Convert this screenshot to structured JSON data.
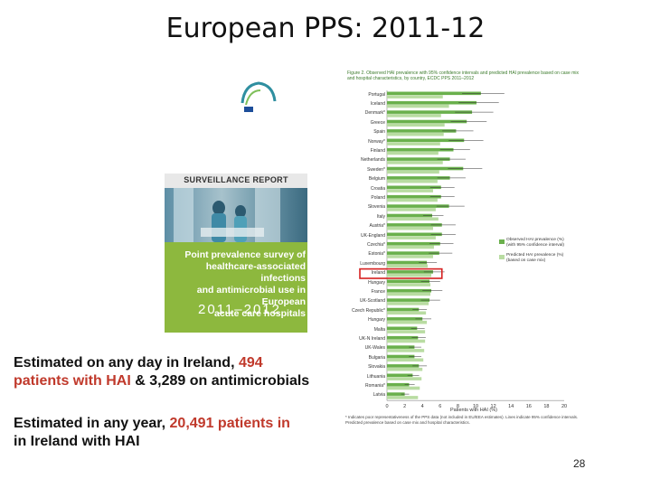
{
  "title": "European PPS: 2011-12",
  "cover": {
    "logo_text": "ecdc",
    "report_label": "SURVEILLANCE REPORT",
    "title_lines": [
      "Point prevalence survey of",
      "healthcare-associated infections",
      "and antimicrobial use in European",
      "acute care hospitals"
    ],
    "year": "2011–2012"
  },
  "figure": {
    "caption": "Figure 2. Observed HAI prevalence with 95% confidence intervals and predicted HAI prevalence based on case mix and hospital characteristics, by country, ECDC PPS 2011–2012",
    "countries": [
      "Portugal",
      "Iceland",
      "Denmark*",
      "Greece",
      "Spain",
      "Norway*",
      "Finland",
      "Netherlands",
      "Sweden*",
      "Belgium",
      "Croatia",
      "Poland",
      "Slovenia",
      "Italy",
      "Austria*",
      "UK-England",
      "Czechia*",
      "Estonia*",
      "Luxembourg",
      "Ireland",
      "Hungary",
      "France",
      "UK-Scotland",
      "Czech Republic*",
      "Hungary",
      "Malta",
      "UK-N Ireland",
      "UK-Wales",
      "Bulgaria",
      "Slovakia",
      "Lithuania",
      "Romania*",
      "Latvia"
    ],
    "legend": [
      "Observed HAI prevalence (%) (with 95% confidence interval)",
      "Predicted HAI prevalence (%) (based on case mix)"
    ],
    "x_title": "Patients with HAI (%)",
    "footnote": "* Indicates poor representativeness of the PPS data (not included in EU/EEA estimates). Lines indicate 95% confidence intervals. Predicted prevalence based on case mix and hospital characteristics."
  },
  "chart_data": {
    "type": "bar",
    "title": "",
    "xlabel": "Patients with HAI (%)",
    "xlim": [
      0,
      20
    ],
    "ticks": [
      "0",
      "2",
      "4",
      "6",
      "8",
      "10",
      "12",
      "14",
      "16",
      "18",
      "20"
    ],
    "categories": [
      "Portugal",
      "Iceland",
      "Denmark*",
      "Greece",
      "Spain",
      "Norway*",
      "Finland",
      "Netherlands",
      "Sweden*",
      "Belgium",
      "Croatia",
      "Poland",
      "Slovenia",
      "Italy",
      "Austria*",
      "UK-England",
      "Czechia*",
      "Estonia*",
      "Luxembourg",
      "Ireland",
      "Hungary",
      "France",
      "UK-Scotland",
      "Czech Republic*",
      "Hungary",
      "Malta",
      "UK-N Ireland",
      "UK-Wales",
      "Bulgaria",
      "Slovakia",
      "Lithuania",
      "Romania*",
      "Latvia"
    ],
    "series": [
      {
        "name": "Observed HAI prevalence (%)",
        "values": [
          10.6,
          10.1,
          9.6,
          9.0,
          7.8,
          8.7,
          7.5,
          7.1,
          8.6,
          7.1,
          6.1,
          6.1,
          7.0,
          5.1,
          6.2,
          6.2,
          6.0,
          5.9,
          4.5,
          5.2,
          4.8,
          5.0,
          4.8,
          3.6,
          4.0,
          3.4,
          3.5,
          3.1,
          3.1,
          3.6,
          2.9,
          2.5,
          2.0
        ]
      },
      {
        "name": "Predicted HAI prevalence (%)",
        "values": [
          6.3,
          7.0,
          6.1,
          6.5,
          6.4,
          6.0,
          5.8,
          6.3,
          5.9,
          5.7,
          5.2,
          5.7,
          5.5,
          5.8,
          5.2,
          5.5,
          5.3,
          5.2,
          4.6,
          5.0,
          4.9,
          4.9,
          4.7,
          4.4,
          4.5,
          4.3,
          4.3,
          4.2,
          4.1,
          4.0,
          3.9,
          3.7,
          3.5
        ]
      }
    ],
    "highlight": "Ireland",
    "colors": {
      "observed": "#6ab04c",
      "predicted": "#b9dca2",
      "highlight": "#d62020"
    }
  },
  "text_blocks": {
    "line1_prefix": "Estimated on any day in Ireland, ",
    "line1_hl": "494",
    "line2_hl": "patients with HAI",
    "line2_mid": " & 3,289 on antimicrobials",
    "line3_prefix": "Estimated in any year, ",
    "line3_hl": "20,491 patients in",
    "line4": "in Ireland with HAI"
  },
  "page_number": "28"
}
